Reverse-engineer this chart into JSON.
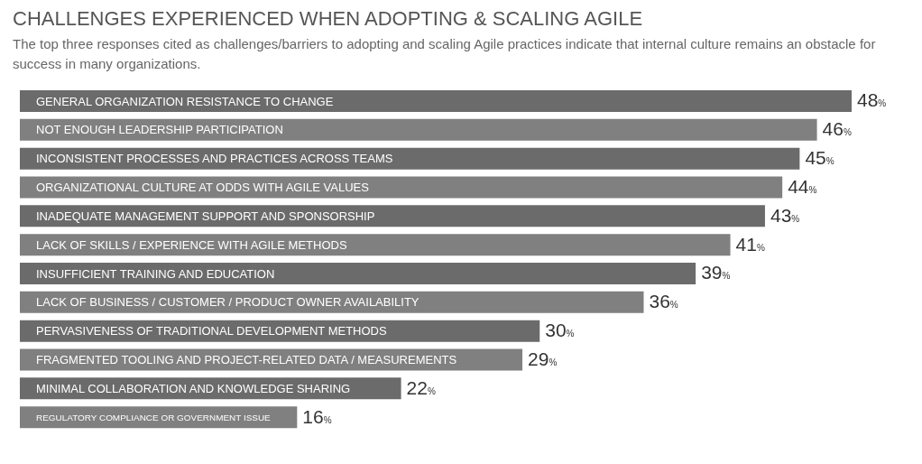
{
  "chart_data": {
    "type": "bar",
    "orientation": "horizontal",
    "data_labels": true,
    "title": "CHALLENGES EXPERIENCED WHEN ADOPTING & SCALING AGILE",
    "subtitle": "The top three responses cited as challenges/barriers to adopting and scaling Agile practices indicate that internal culture remains an obstacle for success in many organizations.",
    "categories": [
      "GENERAL ORGANIZATION RESISTANCE TO CHANGE",
      "NOT ENOUGH LEADERSHIP PARTICIPATION",
      "INCONSISTENT PROCESSES AND PRACTICES ACROSS TEAMS",
      "ORGANIZATIONAL CULTURE AT ODDS WITH AGILE VALUES",
      "INADEQUATE MANAGEMENT SUPPORT AND SPONSORSHIP",
      "LACK OF SKILLS / EXPERIENCE WITH AGILE METHODS",
      "INSUFFICIENT TRAINING AND EDUCATION",
      "LACK OF BUSINESS / CUSTOMER / PRODUCT OWNER AVAILABILITY",
      "PERVASIVENESS OF TRADITIONAL DEVELOPMENT METHODS",
      "FRAGMENTED TOOLING AND PROJECT-RELATED DATA / MEASUREMENTS",
      "MINIMAL COLLABORATION AND KNOWLEDGE SHARING",
      "REGULATORY COMPLIANCE OR GOVERNMENT ISSUE"
    ],
    "values": [
      48,
      46,
      45,
      44,
      43,
      41,
      39,
      36,
      30,
      29,
      22,
      16
    ],
    "value_labels": [
      "48%",
      "46%",
      "45%",
      "44%",
      "43%",
      "41%",
      "39%",
      "36%",
      "30%",
      "29%",
      "22%",
      "16%"
    ],
    "colors": [
      "#6b6b6b",
      "#808080",
      "#6b6b6b",
      "#808080",
      "#6b6b6b",
      "#808080",
      "#6b6b6b",
      "#808080",
      "#6b6b6b",
      "#808080",
      "#6b6b6b",
      "#808080"
    ]
  }
}
